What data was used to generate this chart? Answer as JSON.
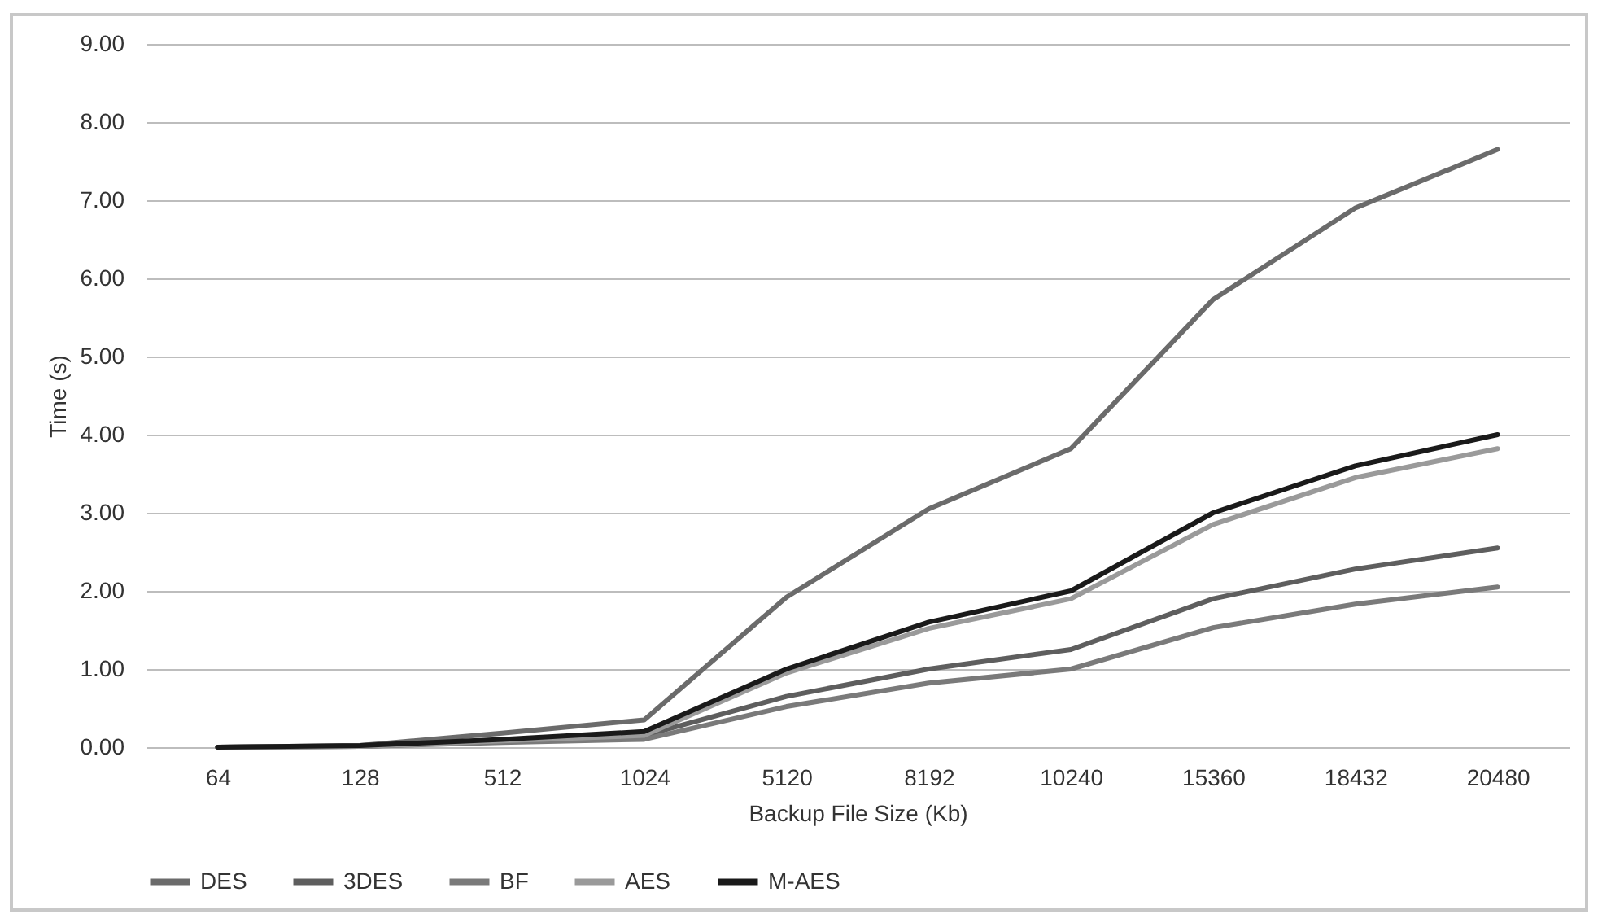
{
  "chart_data": {
    "type": "line",
    "xlabel": "Backup File Size (Kb)",
    "ylabel": "Time (s)",
    "categories": [
      "64",
      "128",
      "512",
      "1024",
      "5120",
      "8192",
      "10240",
      "15360",
      "18432",
      "20480"
    ],
    "series": [
      {
        "name": "DES",
        "color": "#6b6b6b",
        "values": [
          0,
          0.02,
          0.18,
          0.35,
          1.92,
          3.05,
          3.82,
          5.73,
          6.9,
          7.65
        ]
      },
      {
        "name": "3DES",
        "color": "#5e5e5e",
        "values": [
          0,
          0.01,
          0.08,
          0.15,
          0.65,
          1.0,
          1.25,
          1.9,
          2.28,
          2.55
        ]
      },
      {
        "name": "BF",
        "color": "#7a7a7a",
        "values": [
          0,
          0.01,
          0.06,
          0.1,
          0.52,
          0.82,
          1.0,
          1.53,
          1.83,
          2.05
        ]
      },
      {
        "name": "AES",
        "color": "#9a9a9a",
        "values": [
          0,
          0.01,
          0.08,
          0.15,
          0.95,
          1.52,
          1.9,
          2.85,
          3.45,
          3.82
        ]
      },
      {
        "name": "M-AES",
        "color": "#1a1a1a",
        "values": [
          0,
          0.02,
          0.1,
          0.2,
          1.0,
          1.6,
          2.0,
          3.0,
          3.6,
          4.0
        ]
      }
    ],
    "ylim": [
      0,
      9
    ],
    "yticks": [
      {
        "value": 0,
        "label": "0.00"
      },
      {
        "value": 1,
        "label": "1.00"
      },
      {
        "value": 2,
        "label": "2.00"
      },
      {
        "value": 3,
        "label": "3.00"
      },
      {
        "value": 4,
        "label": "4.00"
      },
      {
        "value": 5,
        "label": "5.00"
      },
      {
        "value": 6,
        "label": "6.00"
      },
      {
        "value": 7,
        "label": "7.00"
      },
      {
        "value": 8,
        "label": "8.00"
      },
      {
        "value": 9,
        "label": "9.00"
      }
    ],
    "grid": "y",
    "legend": "bottom",
    "marker": "none",
    "line_style": "solid"
  }
}
